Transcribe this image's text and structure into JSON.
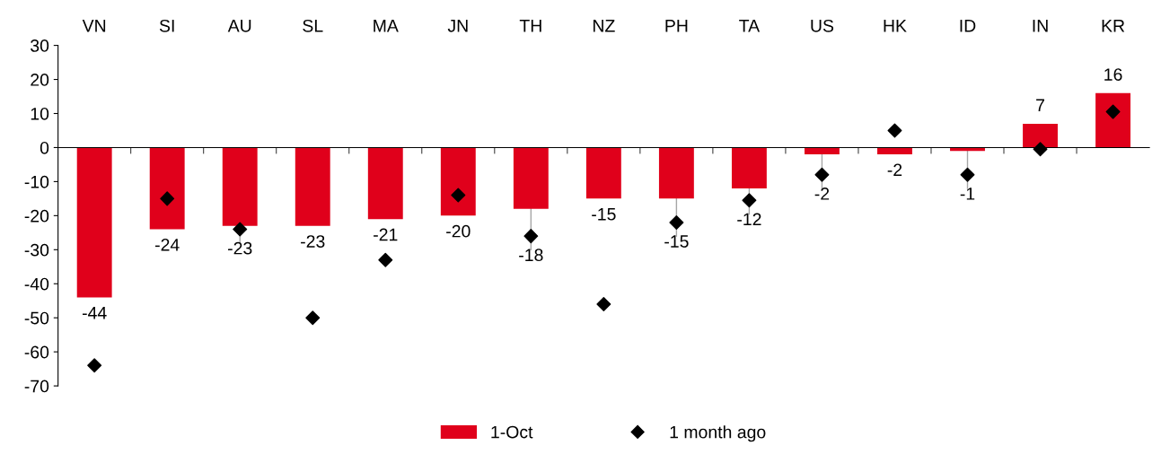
{
  "chart_data": {
    "type": "bar",
    "categories": [
      "VN",
      "SI",
      "AU",
      "SL",
      "MA",
      "JN",
      "TH",
      "NZ",
      "PH",
      "TA",
      "US",
      "HK",
      "ID",
      "IN",
      "KR"
    ],
    "series": [
      {
        "name": "1-Oct",
        "color": "#e0001b",
        "values": [
          -44,
          -24,
          -23,
          -23,
          -21,
          -20,
          -18,
          -15,
          -15,
          -12,
          -2,
          -2,
          -1,
          7,
          16
        ],
        "value_labels": [
          "-44",
          "-24",
          "-23",
          "-23",
          "-21",
          "-20",
          "-18",
          "-15",
          "-15",
          "-12",
          "-2",
          "-2",
          "-1",
          "7",
          "16"
        ]
      },
      {
        "name": "1 month ago",
        "type": "scatter",
        "color": "#000000",
        "values": [
          -64,
          -15,
          -24,
          -50,
          -33,
          -14,
          -26,
          -46,
          -22,
          -15.5,
          -8,
          5,
          -8,
          -0.5,
          10.5
        ]
      }
    ],
    "ylim": [
      -70,
      30
    ],
    "yticks": [
      -70,
      -60,
      -50,
      -40,
      -30,
      -20,
      -10,
      0,
      10,
      20,
      30
    ],
    "legend": "bottom",
    "marker": "diamond"
  }
}
